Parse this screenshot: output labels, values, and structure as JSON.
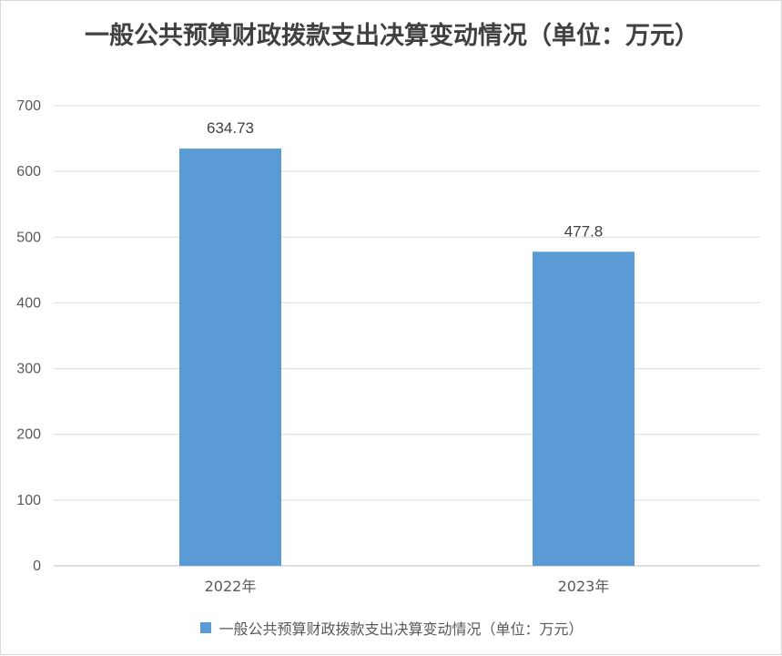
{
  "chart_data": {
    "type": "bar",
    "title": "一般公共预算财政拨款支出决算变动情况（单位：万元）",
    "categories": [
      "2022年",
      "2023年"
    ],
    "series": [
      {
        "name": "一般公共预算财政拨款支出决算变动情况（单位：万元）",
        "values": [
          634.73,
          477.8
        ],
        "data_labels": [
          "634.73",
          "477.8"
        ],
        "color": "#5B9BD5"
      }
    ],
    "y_ticks": [
      "0",
      "100",
      "200",
      "300",
      "400",
      "500",
      "600",
      "700"
    ],
    "ylim": [
      0,
      700
    ],
    "grid": true,
    "legend_position": "bottom"
  }
}
